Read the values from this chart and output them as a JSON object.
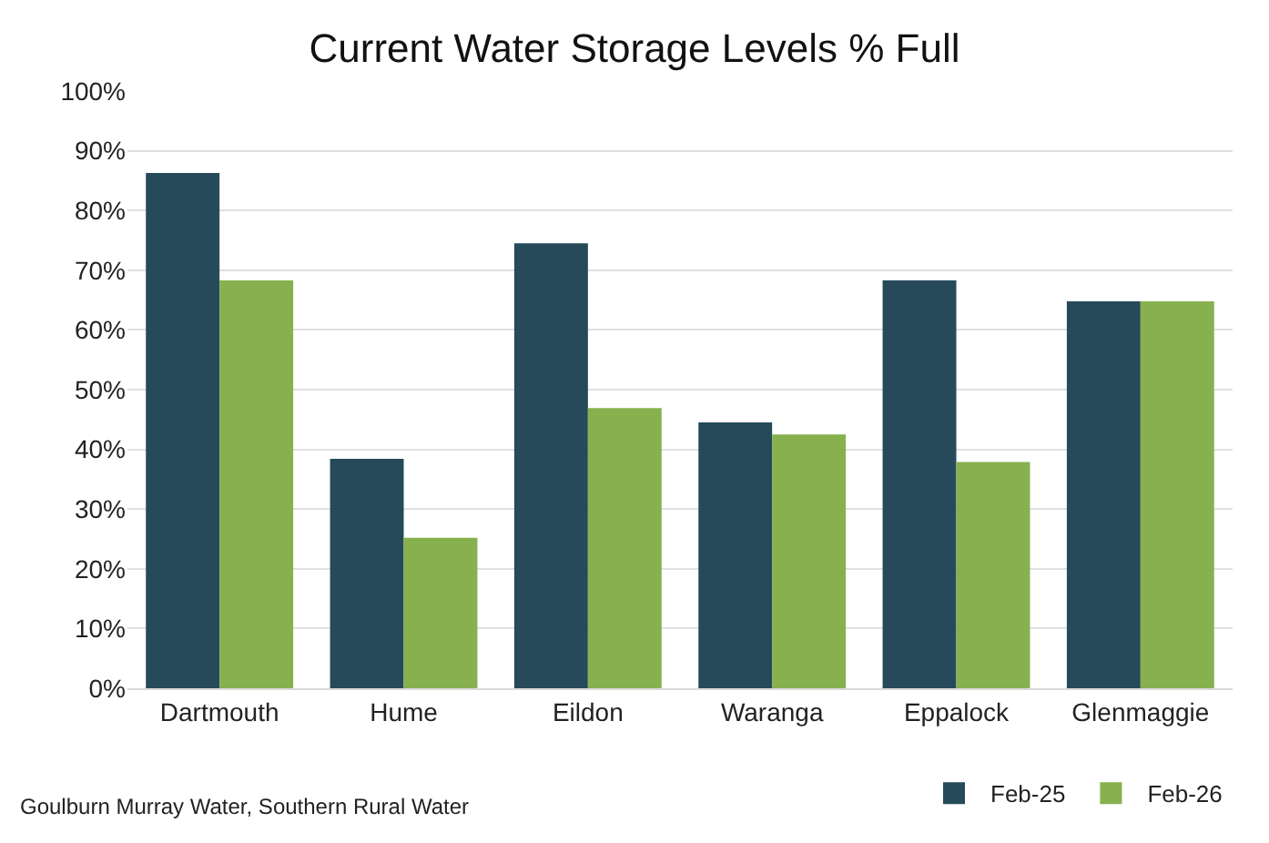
{
  "chart_data": {
    "type": "bar",
    "title": "Current Water Storage Levels % Full",
    "categories": [
      "Dartmouth",
      "Hume",
      "Eildon",
      "Waranga",
      "Eppalock",
      "Glenmaggie"
    ],
    "series": [
      {
        "name": "Feb-25",
        "color": "#264a5a",
        "values": [
          86.3,
          38.4,
          74.5,
          44.5,
          68.3,
          64.8
        ]
      },
      {
        "name": "Feb-26",
        "color": "#86b14e",
        "values": [
          68.3,
          25.2,
          46.9,
          42.5,
          37.9,
          64.8
        ]
      }
    ],
    "ylim": [
      0,
      100
    ],
    "yticks": [
      {
        "value": 0,
        "label": "0%"
      },
      {
        "value": 10,
        "label": "10%"
      },
      {
        "value": 20,
        "label": "20%"
      },
      {
        "value": 30,
        "label": "30%"
      },
      {
        "value": 40,
        "label": "40%"
      },
      {
        "value": 50,
        "label": "50%"
      },
      {
        "value": 60,
        "label": "60%"
      },
      {
        "value": 70,
        "label": "70%"
      },
      {
        "value": 80,
        "label": "80%"
      },
      {
        "value": 90,
        "label": "90%"
      },
      {
        "value": 100,
        "label": "100%"
      }
    ],
    "grid": "y",
    "legend": "bottom right",
    "annotations": [
      "Goulburn Murray Water, Southern Rural Water"
    ]
  }
}
